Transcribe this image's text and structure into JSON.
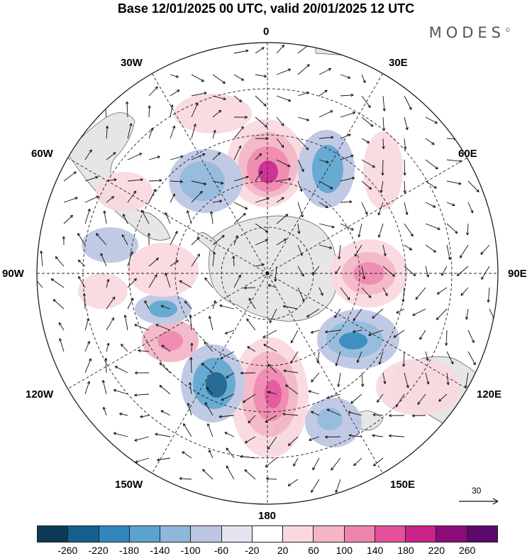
{
  "title": "Base 12/01/2025 00 UTC, valid 20/01/2025 12 UTC",
  "brand": "MODES",
  "brand_mark": "©",
  "meridian_labels": {
    "lon_0": "0",
    "lon_30e": "30E",
    "lon_60e": "60E",
    "lon_90e": "90E",
    "lon_120e": "120E",
    "lon_150e": "150E",
    "lon_180": "180",
    "lon_150w": "150W",
    "lon_120w": "120W",
    "lon_90w": "90W",
    "lon_60w": "60W",
    "lon_30w": "30W"
  },
  "reference_vector": "30",
  "colorbar": {
    "ticks": [
      "-260",
      "-220",
      "-180",
      "-140",
      "-100",
      "-60",
      "-20",
      "20",
      "60",
      "100",
      "140",
      "180",
      "220",
      "260"
    ],
    "colors": [
      "#0d3a57",
      "#14608f",
      "#2f86bd",
      "#5ba3cf",
      "#8fb7db",
      "#bcc6e3",
      "#e4e4f1",
      "#ffffff",
      "#f9d9df",
      "#f4b5c5",
      "#ee85ac",
      "#e64f99",
      "#c9238a",
      "#8d0c79",
      "#5a0a6b"
    ]
  }
}
